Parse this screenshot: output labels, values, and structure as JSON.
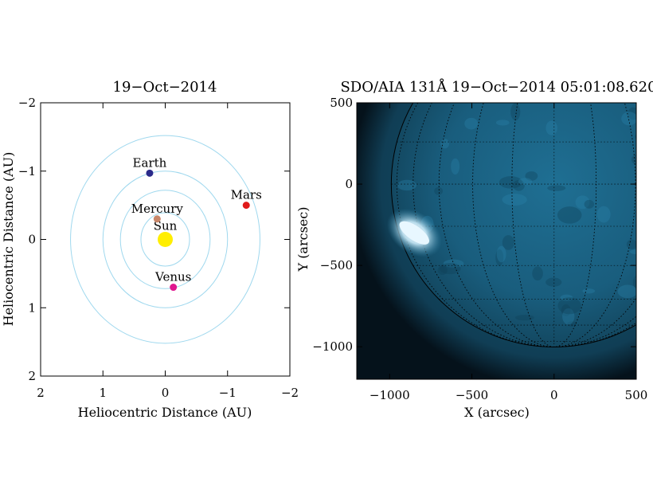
{
  "left_panel": {
    "title": "19−Oct−2014",
    "xlabel": "Heliocentric Distance (AU)",
    "ylabel": "Heliocentric Distance (AU)",
    "orbit_color": "#9fd8ee"
  },
  "right_panel": {
    "title": "SDO/AIA 131Å 19−Oct−2014 05:01:08.620",
    "xlabel": "X (arcsec)",
    "ylabel": "Y (arcsec)",
    "image_dark_color": "#05121b",
    "image_bright_color": "#1d6e92",
    "flare_color": "#e8f7ff"
  },
  "chart_data": [
    {
      "type": "scatter",
      "title": "19−Oct−2014",
      "xlabel": "Heliocentric Distance (AU)",
      "ylabel": "Heliocentric Distance (AU)",
      "xlim": [
        2,
        -2
      ],
      "ylim": [
        2,
        -2
      ],
      "xticks": [
        2,
        1,
        0,
        -1,
        -2
      ],
      "yticks": [
        -2,
        -1,
        0,
        1,
        2
      ],
      "xtick_labels": [
        "2",
        "1",
        "0",
        "−1",
        "−2"
      ],
      "ytick_labels": [
        "−2",
        "−1",
        "0",
        "1",
        "2"
      ],
      "orbit_radii": [
        0.39,
        0.72,
        1.0,
        1.52
      ],
      "points": [
        {
          "name": "Sun",
          "x": 0.0,
          "y": 0.0,
          "color": "#ffee00"
        },
        {
          "name": "Mercury",
          "x": 0.13,
          "y": -0.3,
          "color": "#c8876a"
        },
        {
          "name": "Venus",
          "x": -0.13,
          "y": 0.7,
          "color": "#e0158e"
        },
        {
          "name": "Earth",
          "x": 0.25,
          "y": -0.97,
          "color": "#2a2a8a"
        },
        {
          "name": "Mars",
          "x": -1.3,
          "y": -0.5,
          "color": "#e01b1b"
        }
      ]
    },
    {
      "type": "heatmap",
      "title": "SDO/AIA 131Å 19−Oct−2014 05:01:08.620",
      "xlabel": "X (arcsec)",
      "ylabel": "Y (arcsec)",
      "xlim": [
        -1200,
        500
      ],
      "ylim": [
        -1200,
        500
      ],
      "xticks": [
        -1000,
        -500,
        0,
        500
      ],
      "yticks": [
        500,
        0,
        -500,
        -1000
      ],
      "xtick_labels": [
        "−1000",
        "−500",
        "0",
        "500"
      ],
      "ytick_labels": [
        "500",
        "0",
        "−500",
        "−1000"
      ],
      "solar_limb_radius": 990,
      "solar_center": [
        0,
        0
      ],
      "grid_spacing_deg": 15,
      "bright_region": {
        "x": -850,
        "y": -300
      }
    }
  ]
}
